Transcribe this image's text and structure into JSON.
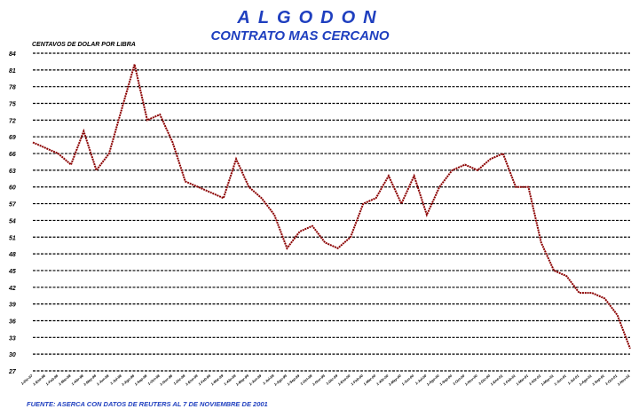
{
  "chart_data": {
    "type": "line",
    "title": "ALGODON",
    "subtitle": "CONTRATO MAS CERCANO",
    "y_label": "CENTAVOS DE DOLAR POR LIBRA",
    "source": "FUENTE: ASERCA CON DATOS DE REUTERS AL 7 DE NOVIEMBRE DE 2001",
    "categories": [
      "1-Dic-97",
      "1-Ene-98",
      "1-Feb-98",
      "1-Mar-98",
      "1-Abr-98",
      "1-May-98",
      "1-Jun-98",
      "1-Jul-98",
      "1-Ago-98",
      "1-Sep-98",
      "1-Oct-98",
      "1-Nov-98",
      "1-Dic-98",
      "1-Ene-99",
      "1-Feb-99",
      "1-Mar-99",
      "1-Abr-99",
      "1-May-99",
      "1-Jun-99",
      "1-Jul-99",
      "1-Ago-99",
      "1-Sep-99",
      "1-Oct-99",
      "1-Nov-99",
      "1-Dic-99",
      "1-Ene-00",
      "1-Feb-00",
      "1-Mar-00",
      "1-Abr-00",
      "1-May-00",
      "1-Jun-00",
      "1-Jul-00",
      "1-Ago-00",
      "1-Sep-00",
      "1-Oct-00",
      "1-Nov-00",
      "1-Dic-00",
      "1-Ene-01",
      "1-Feb-01",
      "1-Mar-01",
      "1-Abr-01",
      "1-May-01",
      "1-Jun-01",
      "1-Jul-01",
      "1-Ago-01",
      "1-Sep-01",
      "1-Oct-01",
      "1-Nov-01"
    ],
    "series": [
      {
        "name": "Algodon",
        "color": "#8b0000",
        "values": [
          68,
          67,
          66,
          64,
          70,
          63,
          66,
          74,
          82,
          72,
          73,
          68,
          61,
          60,
          59,
          58,
          65,
          60,
          58,
          55,
          49,
          52,
          53,
          50,
          49,
          51,
          57,
          58,
          62,
          57,
          62,
          55,
          60,
          63,
          64,
          63,
          65,
          66,
          60,
          60,
          50,
          45,
          44,
          41,
          41,
          40,
          37,
          31
        ]
      }
    ],
    "ylim": [
      27,
      84
    ],
    "yticks": [
      27,
      30,
      33,
      36,
      39,
      42,
      45,
      48,
      51,
      54,
      57,
      60,
      63,
      66,
      69,
      72,
      75,
      78,
      81,
      84
    ],
    "grid": true
  }
}
